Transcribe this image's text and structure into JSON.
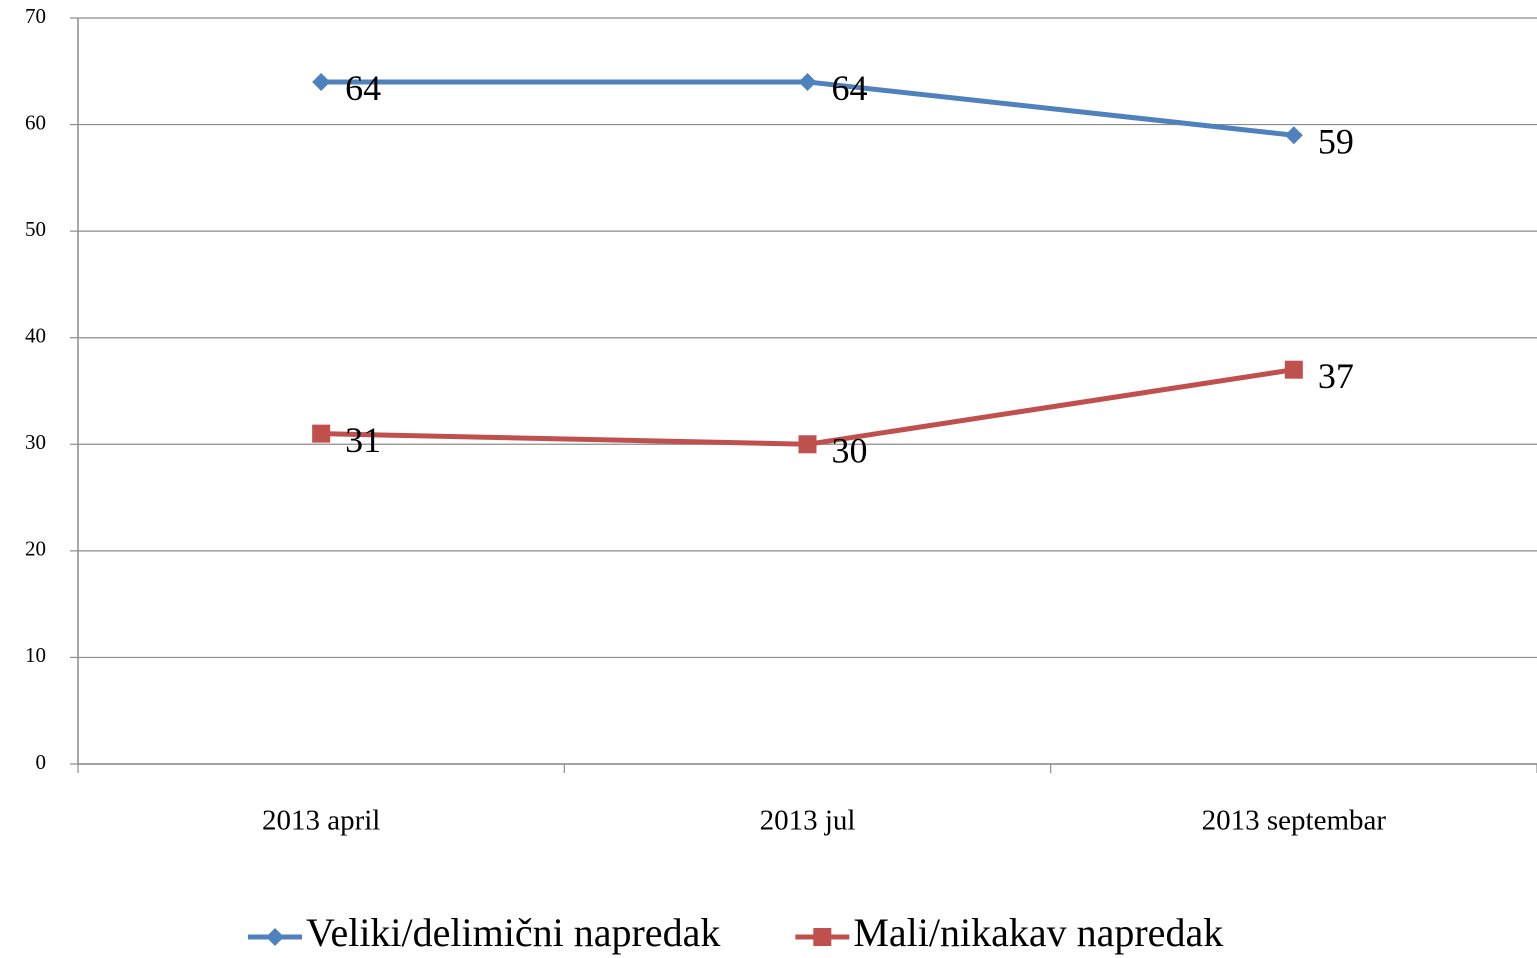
{
  "chart_data": {
    "type": "line",
    "categories": [
      "2013 april",
      "2013 jul",
      "2013 septembar"
    ],
    "series": [
      {
        "name": "Veliki/delimični napredak",
        "color": "#4f81bd",
        "marker": "diamond",
        "values": [
          64,
          64,
          59
        ]
      },
      {
        "name": "Mali/nikakav napredak",
        "color": "#c0504d",
        "marker": "square",
        "values": [
          31,
          30,
          37
        ]
      }
    ],
    "ylim": [
      0,
      70
    ],
    "yticks": [
      0,
      10,
      20,
      30,
      40,
      50,
      60,
      70
    ],
    "grid": true,
    "legend": "bottom"
  }
}
